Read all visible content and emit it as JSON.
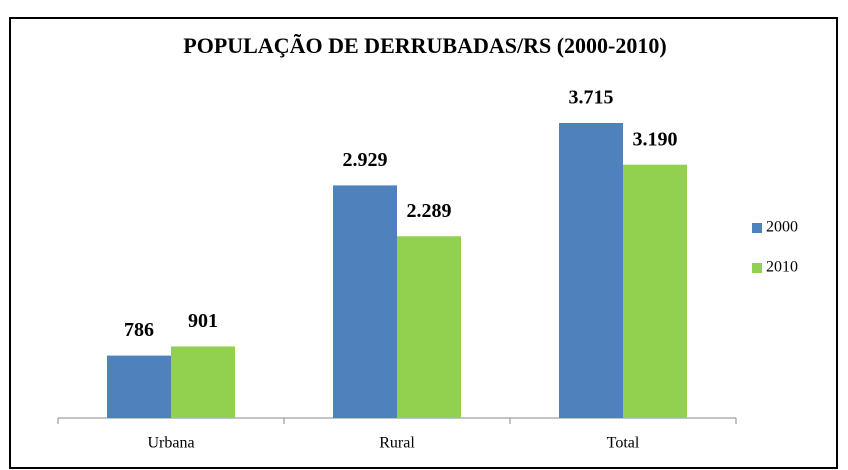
{
  "chart_data": {
    "type": "bar",
    "title": "POPULAÇÃO DE DERRUBADAS/RS (2000-2010)",
    "categories": [
      "Urbana",
      "Rural",
      "Total"
    ],
    "series": [
      {
        "name": "2000",
        "color": "#4f81bd",
        "values": [
          786,
          2929,
          3715
        ],
        "value_labels": [
          "786",
          "2.929",
          "3.715"
        ]
      },
      {
        "name": "2010",
        "color": "#92d050",
        "values": [
          901,
          2289,
          3190
        ],
        "value_labels": [
          "901",
          "2.289",
          "3.190"
        ]
      }
    ],
    "legend": "right"
  }
}
